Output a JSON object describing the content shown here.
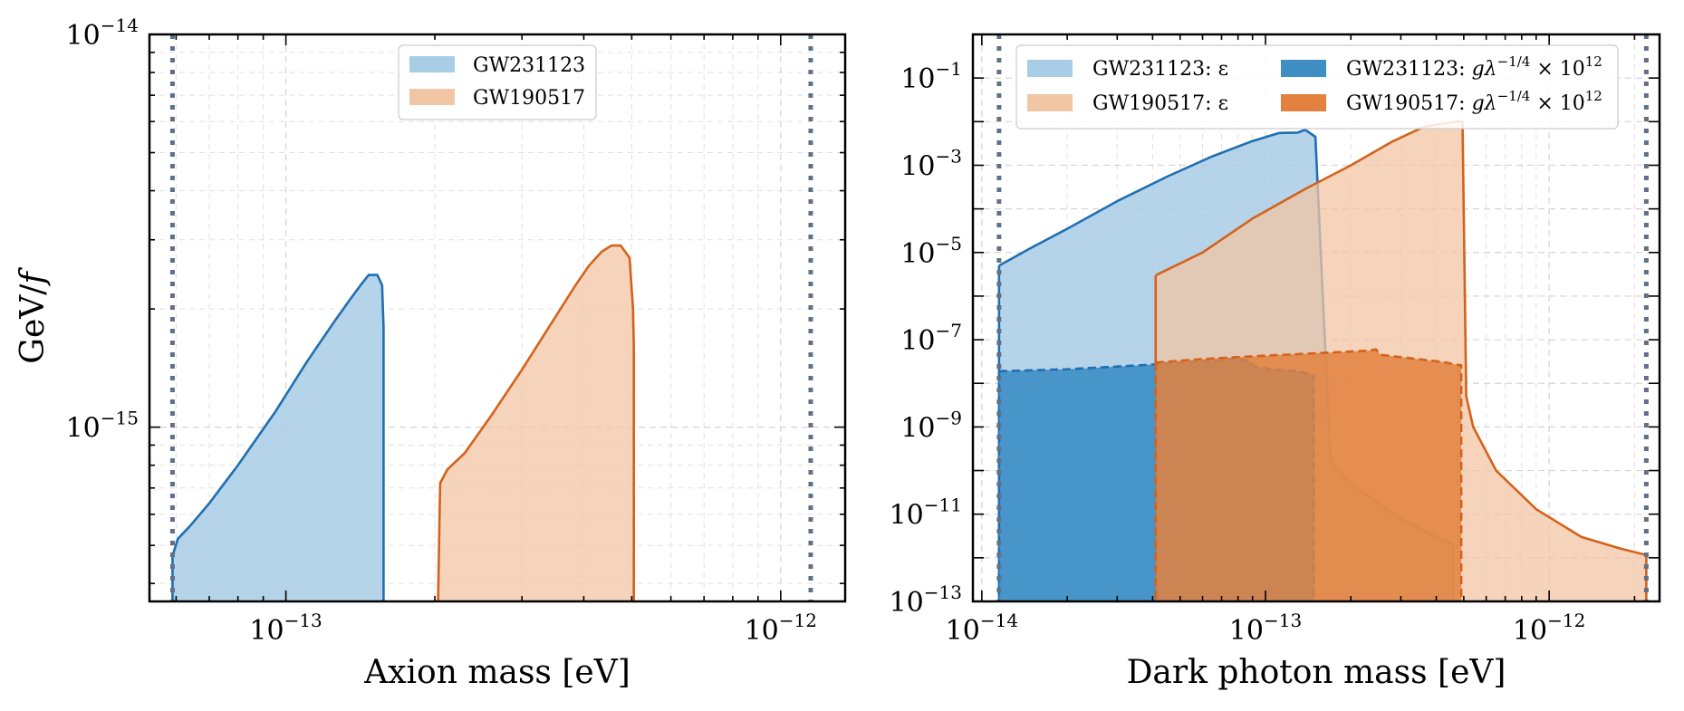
{
  "colors": {
    "blue_line": "#1f6fb2",
    "blue_fill": "#a8cde6",
    "blue_dark_fill": "#3f8fc5",
    "orange_line": "#d4621a",
    "orange_fill": "#f1c6a4",
    "orange_dark_fill": "#e3813e",
    "overlap_fill": "#8a8882",
    "bound_line": "#5f7186"
  },
  "chart_data": [
    {
      "type": "area",
      "panel": "left",
      "xlabel": "Axion mass [eV]",
      "ylabel": "GeV/f",
      "xscale": "log",
      "yscale": "log",
      "xlim": [
        5.3e-14,
        1.35e-12
      ],
      "ylim": [
        3.6e-16,
        1e-14
      ],
      "x_ticks": [
        {
          "value": 1e-13,
          "base": "10",
          "exp": "−13"
        },
        {
          "value": 1e-12,
          "base": "10",
          "exp": "−12"
        }
      ],
      "y_ticks": [
        {
          "value": 1e-15,
          "base": "10",
          "exp": "−15"
        },
        {
          "value": 1e-14,
          "base": "10",
          "exp": "−14"
        }
      ],
      "vertical_bounds": [
        5.9e-14,
        1.15e-12
      ],
      "legend_position": "top-center",
      "series": [
        {
          "name": "GW231123",
          "color": "blue",
          "style": "solid",
          "x": [
            5.9e-14,
            6.05e-14,
            6.4e-14,
            7e-14,
            8e-14,
            9.5e-14,
            1.1e-13,
            1.25e-13,
            1.35e-13,
            1.42e-13,
            1.47e-13,
            1.53e-13,
            1.565e-13,
            1.575e-13,
            1.575e-13
          ],
          "upper": [
            4.7e-16,
            5.2e-16,
            5.6e-16,
            6.4e-16,
            8e-16,
            1.09e-15,
            1.46e-15,
            1.85e-15,
            2.12e-15,
            2.31e-15,
            2.44e-15,
            2.44e-15,
            2.3e-15,
            1.8e-15,
            1.45e-15
          ],
          "lower": [
            3.6e-16,
            3.6e-16,
            3.6e-16,
            3.6e-16,
            3.6e-16,
            3.6e-16,
            3.6e-16,
            3.6e-16,
            3.6e-16,
            3.6e-16,
            3.6e-16,
            3.6e-16,
            3.6e-16,
            3.6e-16,
            3.6e-16
          ]
        },
        {
          "name": "GW190517",
          "color": "orange",
          "style": "solid",
          "x": [
            2.03e-13,
            2.05e-13,
            2.12e-13,
            2.3e-13,
            2.6e-13,
            3e-13,
            3.45e-13,
            3.85e-13,
            4.1e-13,
            4.35e-13,
            4.55e-13,
            4.75e-13,
            4.95e-13,
            5.03e-13,
            5.05e-13
          ],
          "upper": [
            3.6e-16,
            7.2e-16,
            7.8e-16,
            8.6e-16,
            1.07e-15,
            1.4e-15,
            1.85e-15,
            2.3e-15,
            2.58e-15,
            2.8e-15,
            2.9e-15,
            2.9e-15,
            2.7e-15,
            2e-15,
            1.6e-15
          ],
          "lower": [
            3.6e-16,
            3.6e-16,
            3.6e-16,
            3.6e-16,
            3.6e-16,
            3.6e-16,
            3.6e-16,
            3.6e-16,
            3.6e-16,
            3.6e-16,
            3.6e-16,
            3.6e-16,
            3.6e-16,
            3.6e-16,
            3.6e-16
          ]
        }
      ]
    },
    {
      "type": "area",
      "panel": "right",
      "xlabel": "Dark photon mass [eV]",
      "ylabel": "",
      "xscale": "log",
      "yscale": "log",
      "xlim": [
        9.3e-15,
        2.45e-12
      ],
      "ylim": [
        1e-13,
        1.0
      ],
      "x_ticks": [
        {
          "value": 1e-14,
          "base": "10",
          "exp": "−14"
        },
        {
          "value": 1e-13,
          "base": "10",
          "exp": "−13"
        },
        {
          "value": 1e-12,
          "base": "10",
          "exp": "−12"
        }
      ],
      "y_ticks": [
        {
          "value": 1e-13,
          "base": "10",
          "exp": "−13"
        },
        {
          "value": 1e-11,
          "base": "10",
          "exp": "−11"
        },
        {
          "value": 1e-09,
          "base": "10",
          "exp": "−9"
        },
        {
          "value": 1e-07,
          "base": "10",
          "exp": "−7"
        },
        {
          "value": 1e-05,
          "base": "10",
          "exp": "−5"
        },
        {
          "value": 0.001,
          "base": "10",
          "exp": "−3"
        },
        {
          "value": 0.1,
          "base": "10",
          "exp": "−1"
        }
      ],
      "vertical_bounds": [
        1.15e-14,
        2.2e-12
      ],
      "legend_position": "top",
      "series": [
        {
          "name": "GW231123: ε",
          "color": "blue",
          "style": "solid",
          "x": [
            1.15e-14,
            1.5e-14,
            2e-14,
            3e-14,
            4.5e-14,
            6.5e-14,
            9e-14,
            1.12e-13,
            1.3e-13,
            1.38e-13,
            1.5e-13,
            1.6e-13,
            1.7e-13,
            2e-13,
            3e-13,
            4e-13,
            4.6e-13
          ],
          "upper": [
            5e-06,
            1.3e-05,
            3.5e-05,
            0.00015,
            0.00055,
            0.0016,
            0.0036,
            0.0055,
            0.0056,
            0.0065,
            0.0045,
            5e-07,
            1.6e-10,
            5e-11,
            8e-12,
            3e-12,
            2e-12
          ],
          "lower": [
            1e-13,
            1e-13,
            1e-13,
            1e-13,
            1e-13,
            1e-13,
            1e-13,
            1e-13,
            1e-13,
            1e-13,
            1e-13,
            1e-13,
            1e-13,
            1e-13,
            1e-13,
            1e-13,
            1e-13
          ]
        },
        {
          "name": "GW190517: ε",
          "color": "orange",
          "style": "solid",
          "x": [
            4.1e-14,
            6e-14,
            9e-14,
            1.4e-13,
            2e-13,
            2.8e-13,
            3.6e-13,
            4.2e-13,
            4.7e-13,
            4.95e-13,
            5.1e-13,
            5.4e-13,
            6.5e-13,
            9e-13,
            1.3e-12,
            1.8e-12,
            2.15e-12,
            2.2e-12
          ],
          "upper": [
            3e-06,
            1e-05,
            6e-05,
            0.0003,
            0.001,
            0.0035,
            0.0075,
            0.009,
            0.01,
            0.01,
            5e-09,
            1e-09,
            1e-10,
            1.3e-11,
            3e-12,
            1.6e-12,
            1.2e-12,
            1.2e-12
          ],
          "lower": [
            1e-13,
            1e-13,
            1e-13,
            1e-13,
            1e-13,
            1e-13,
            1e-13,
            1e-13,
            1e-13,
            1e-13,
            1e-13,
            1e-13,
            1e-13,
            1e-13,
            1e-13,
            1e-13,
            1e-13,
            1e-13
          ]
        },
        {
          "name": "GW231123: gλ^(−1/4) × 10^12",
          "color": "blue_dark",
          "style": "dashed",
          "x": [
            1.15e-14,
            2e-14,
            4e-14,
            6e-14,
            8e-14,
            8.7e-14,
            9.2e-14,
            1.05e-13,
            1.3e-13,
            1.46e-13,
            1.48e-13
          ],
          "upper": [
            1.9e-08,
            2.1e-08,
            2.7e-08,
            3.2e-08,
            3.6e-08,
            3.3e-08,
            2.4e-08,
            2.1e-08,
            1.9e-08,
            1.6e-08,
            1.6e-08
          ],
          "lower": [
            1e-13,
            1e-13,
            1e-13,
            1e-13,
            1e-13,
            1e-13,
            1e-13,
            1e-13,
            1e-13,
            1e-13,
            1e-13
          ]
        },
        {
          "name": "GW190517: gλ^(−1/4) × 10^12",
          "color": "orange_dark",
          "style": "dashed",
          "x": [
            4.1e-14,
            6e-14,
            1e-13,
            1.6e-13,
            2.3e-13,
            2.45e-13,
            2.55e-13,
            3.2e-13,
            4.2e-13,
            4.85e-13,
            4.9e-13
          ],
          "upper": [
            3e-08,
            3.6e-08,
            4.3e-08,
            5e-08,
            5.6e-08,
            6e-08,
            4.5e-08,
            3.8e-08,
            3.1e-08,
            2.6e-08,
            2.6e-08
          ],
          "lower": [
            1e-13,
            1e-13,
            1e-13,
            1e-13,
            1e-13,
            1e-13,
            1e-13,
            1e-13,
            1e-13,
            1e-13,
            1e-13
          ]
        }
      ]
    }
  ],
  "legend_left": {
    "item1": "GW231123",
    "item2": "GW190517"
  },
  "legend_right": {
    "item1": "GW231123: ε",
    "item2": "GW190517: ε",
    "item3_prefix": "GW231123: ",
    "item4_prefix": "GW190517: ",
    "coupling_g": "g",
    "coupling_lambda": "λ",
    "coupling_exp": "−1/4",
    "times_ten": " × 10",
    "scale_exp": "12"
  },
  "axes": {
    "left_ylabel_main": "GeV/",
    "left_ylabel_f": "f",
    "left_xlabel": "Axion mass [eV]",
    "right_xlabel": "Dark photon mass [eV]"
  }
}
